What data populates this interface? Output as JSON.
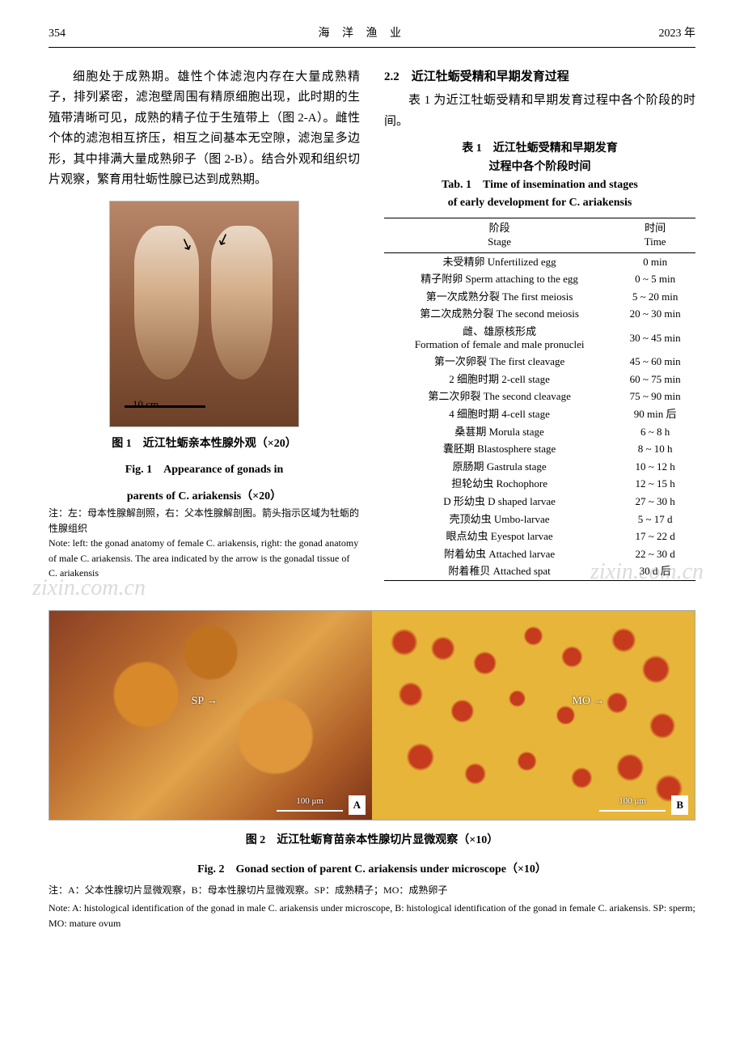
{
  "header": {
    "page_number": "354",
    "journal_title": "海 洋 渔 业",
    "year": "2023 年"
  },
  "left_column": {
    "paragraph": "细胞处于成熟期。雄性个体滤泡内存在大量成熟精子，排列紧密，滤泡壁周围有精原细胞出现，此时期的生殖带清晰可见，成熟的精子位于生殖带上（图 2-A）。雌性个体的滤泡相互挤压，相互之间基本无空隙，滤泡呈多边形，其中排满大量成熟卵子（图 2-B）。结合外观和组织切片观察，繁育用牡蛎性腺已达到成熟期。",
    "fig1_scale": "10 cm",
    "fig1_caption_cn": "图 1　近江牡蛎亲本性腺外观（×20）",
    "fig1_caption_en_line1": "Fig. 1　Appearance of gonads in",
    "fig1_caption_en_line2": "parents of C. ariakensis（×20）",
    "fig1_note_cn": "注：左：母本性腺解剖照，右：父本性腺解剖图。箭头指示区域为牡蛎的性腺组织",
    "fig1_note_en": "Note: left: the gonad anatomy of female C. ariakensis, right: the gonad anatomy of male C. ariakensis. The area indicated by the arrow is the gonadal tissue of C. ariakensis"
  },
  "right_column": {
    "section_heading": "2.2　近江牡蛎受精和早期发育过程",
    "section_text": "表 1 为近江牡蛎受精和早期发育过程中各个阶段的时间。",
    "table_caption_cn_line1": "表 1　近江牡蛎受精和早期发育",
    "table_caption_cn_line2": "过程中各个阶段时间",
    "table_caption_en_line1": "Tab. 1　Time of insemination and stages",
    "table_caption_en_line2": "of early development for C. ariakensis",
    "table_head_stage_cn": "阶段",
    "table_head_stage_en": "Stage",
    "table_head_time_cn": "时间",
    "table_head_time_en": "Time",
    "rows": [
      {
        "stage": "未受精卵 Unfertilized egg",
        "time": "0 min"
      },
      {
        "stage": "精子附卵 Sperm attaching to the egg",
        "time": "0 ~ 5 min"
      },
      {
        "stage": "第一次成熟分裂 The first meiosis",
        "time": "5 ~ 20 min"
      },
      {
        "stage": "第二次成熟分裂 The second meiosis",
        "time": "20 ~ 30 min"
      },
      {
        "stage": "雌、雄原核形成\nFormation of female and male pronuclei",
        "time": "30 ~ 45 min"
      },
      {
        "stage": "第一次卵裂 The first cleavage",
        "time": "45 ~ 60 min"
      },
      {
        "stage": "2 细胞时期 2-cell stage",
        "time": "60 ~ 75 min"
      },
      {
        "stage": "第二次卵裂 The second cleavage",
        "time": "75 ~ 90 min"
      },
      {
        "stage": "4 细胞时期 4-cell stage",
        "time": "90 min 后"
      },
      {
        "stage": "桑葚期 Morula stage",
        "time": "6 ~ 8 h"
      },
      {
        "stage": "囊胚期 Blastosphere stage",
        "time": "8 ~ 10 h"
      },
      {
        "stage": "原肠期 Gastrula stage",
        "time": "10 ~ 12 h"
      },
      {
        "stage": "担轮幼虫 Rochophore",
        "time": "12 ~ 15 h"
      },
      {
        "stage": "D 形幼虫 D shaped larvae",
        "time": "27 ~ 30 h"
      },
      {
        "stage": "壳顶幼虫 Umbo-larvae",
        "time": "5 ~ 17 d"
      },
      {
        "stage": "眼点幼虫 Eyespot larvae",
        "time": "17 ~ 22 d"
      },
      {
        "stage": "附着幼虫 Attached larvae",
        "time": "22 ~ 30 d"
      },
      {
        "stage": "附着稚贝 Attached spat",
        "time": "30 d 后"
      }
    ]
  },
  "watermark_text": "zixin.com.cn",
  "fig2": {
    "panel_a_label": "A",
    "panel_b_label": "B",
    "sp_label": "SP",
    "mo_label": "MO",
    "scale_text": "100 μm",
    "caption_cn": "图 2　近江牡蛎育苗亲本性腺切片显微观察（×10）",
    "caption_en": "Fig. 2　Gonad section of parent C. ariakensis under microscope（×10）",
    "note_cn": "注：A：父本性腺切片显微观察，B：母本性腺切片显微观察。SP：成熟精子；MO：成熟卵子",
    "note_en": "Note: A: histological identification of the gonad in male C. ariakensis under microscope, B: histological identification of the gonad in female C. ariakensis. SP: sperm; MO: mature ovum"
  }
}
